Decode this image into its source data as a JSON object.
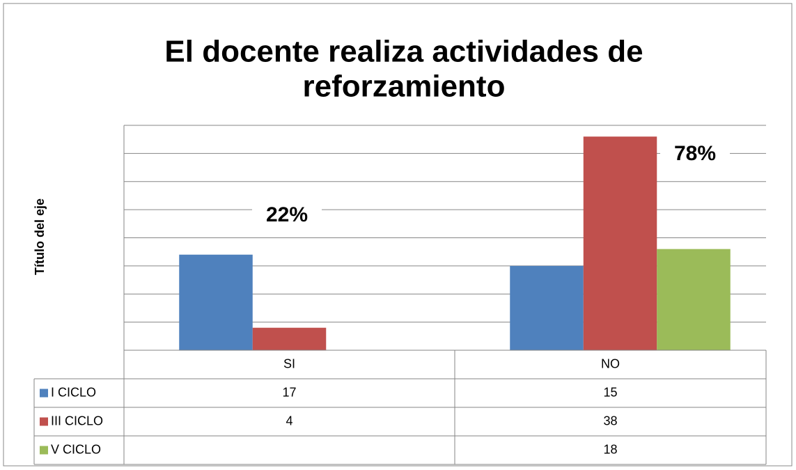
{
  "chart_data": {
    "type": "bar",
    "title": [
      "El docente realiza actividades de",
      "reforzamiento"
    ],
    "y_label": "Título del eje",
    "categories": [
      "SI",
      "NO"
    ],
    "series": [
      {
        "name": "I CICLO",
        "color": "#4f81bd",
        "values": [
          17,
          15
        ]
      },
      {
        "name": "III CICLO",
        "color": "#c0504d",
        "values": [
          4,
          38
        ]
      },
      {
        "name": "V CICLO",
        "color": "#9bbb59",
        "values": [
          null,
          18
        ]
      }
    ],
    "annotations": [
      "22%",
      "78%"
    ],
    "ylim": [
      0,
      40
    ],
    "yticks": [
      0,
      5,
      10,
      15,
      20,
      25,
      30,
      35,
      40
    ],
    "grid": true,
    "data_table": true
  }
}
